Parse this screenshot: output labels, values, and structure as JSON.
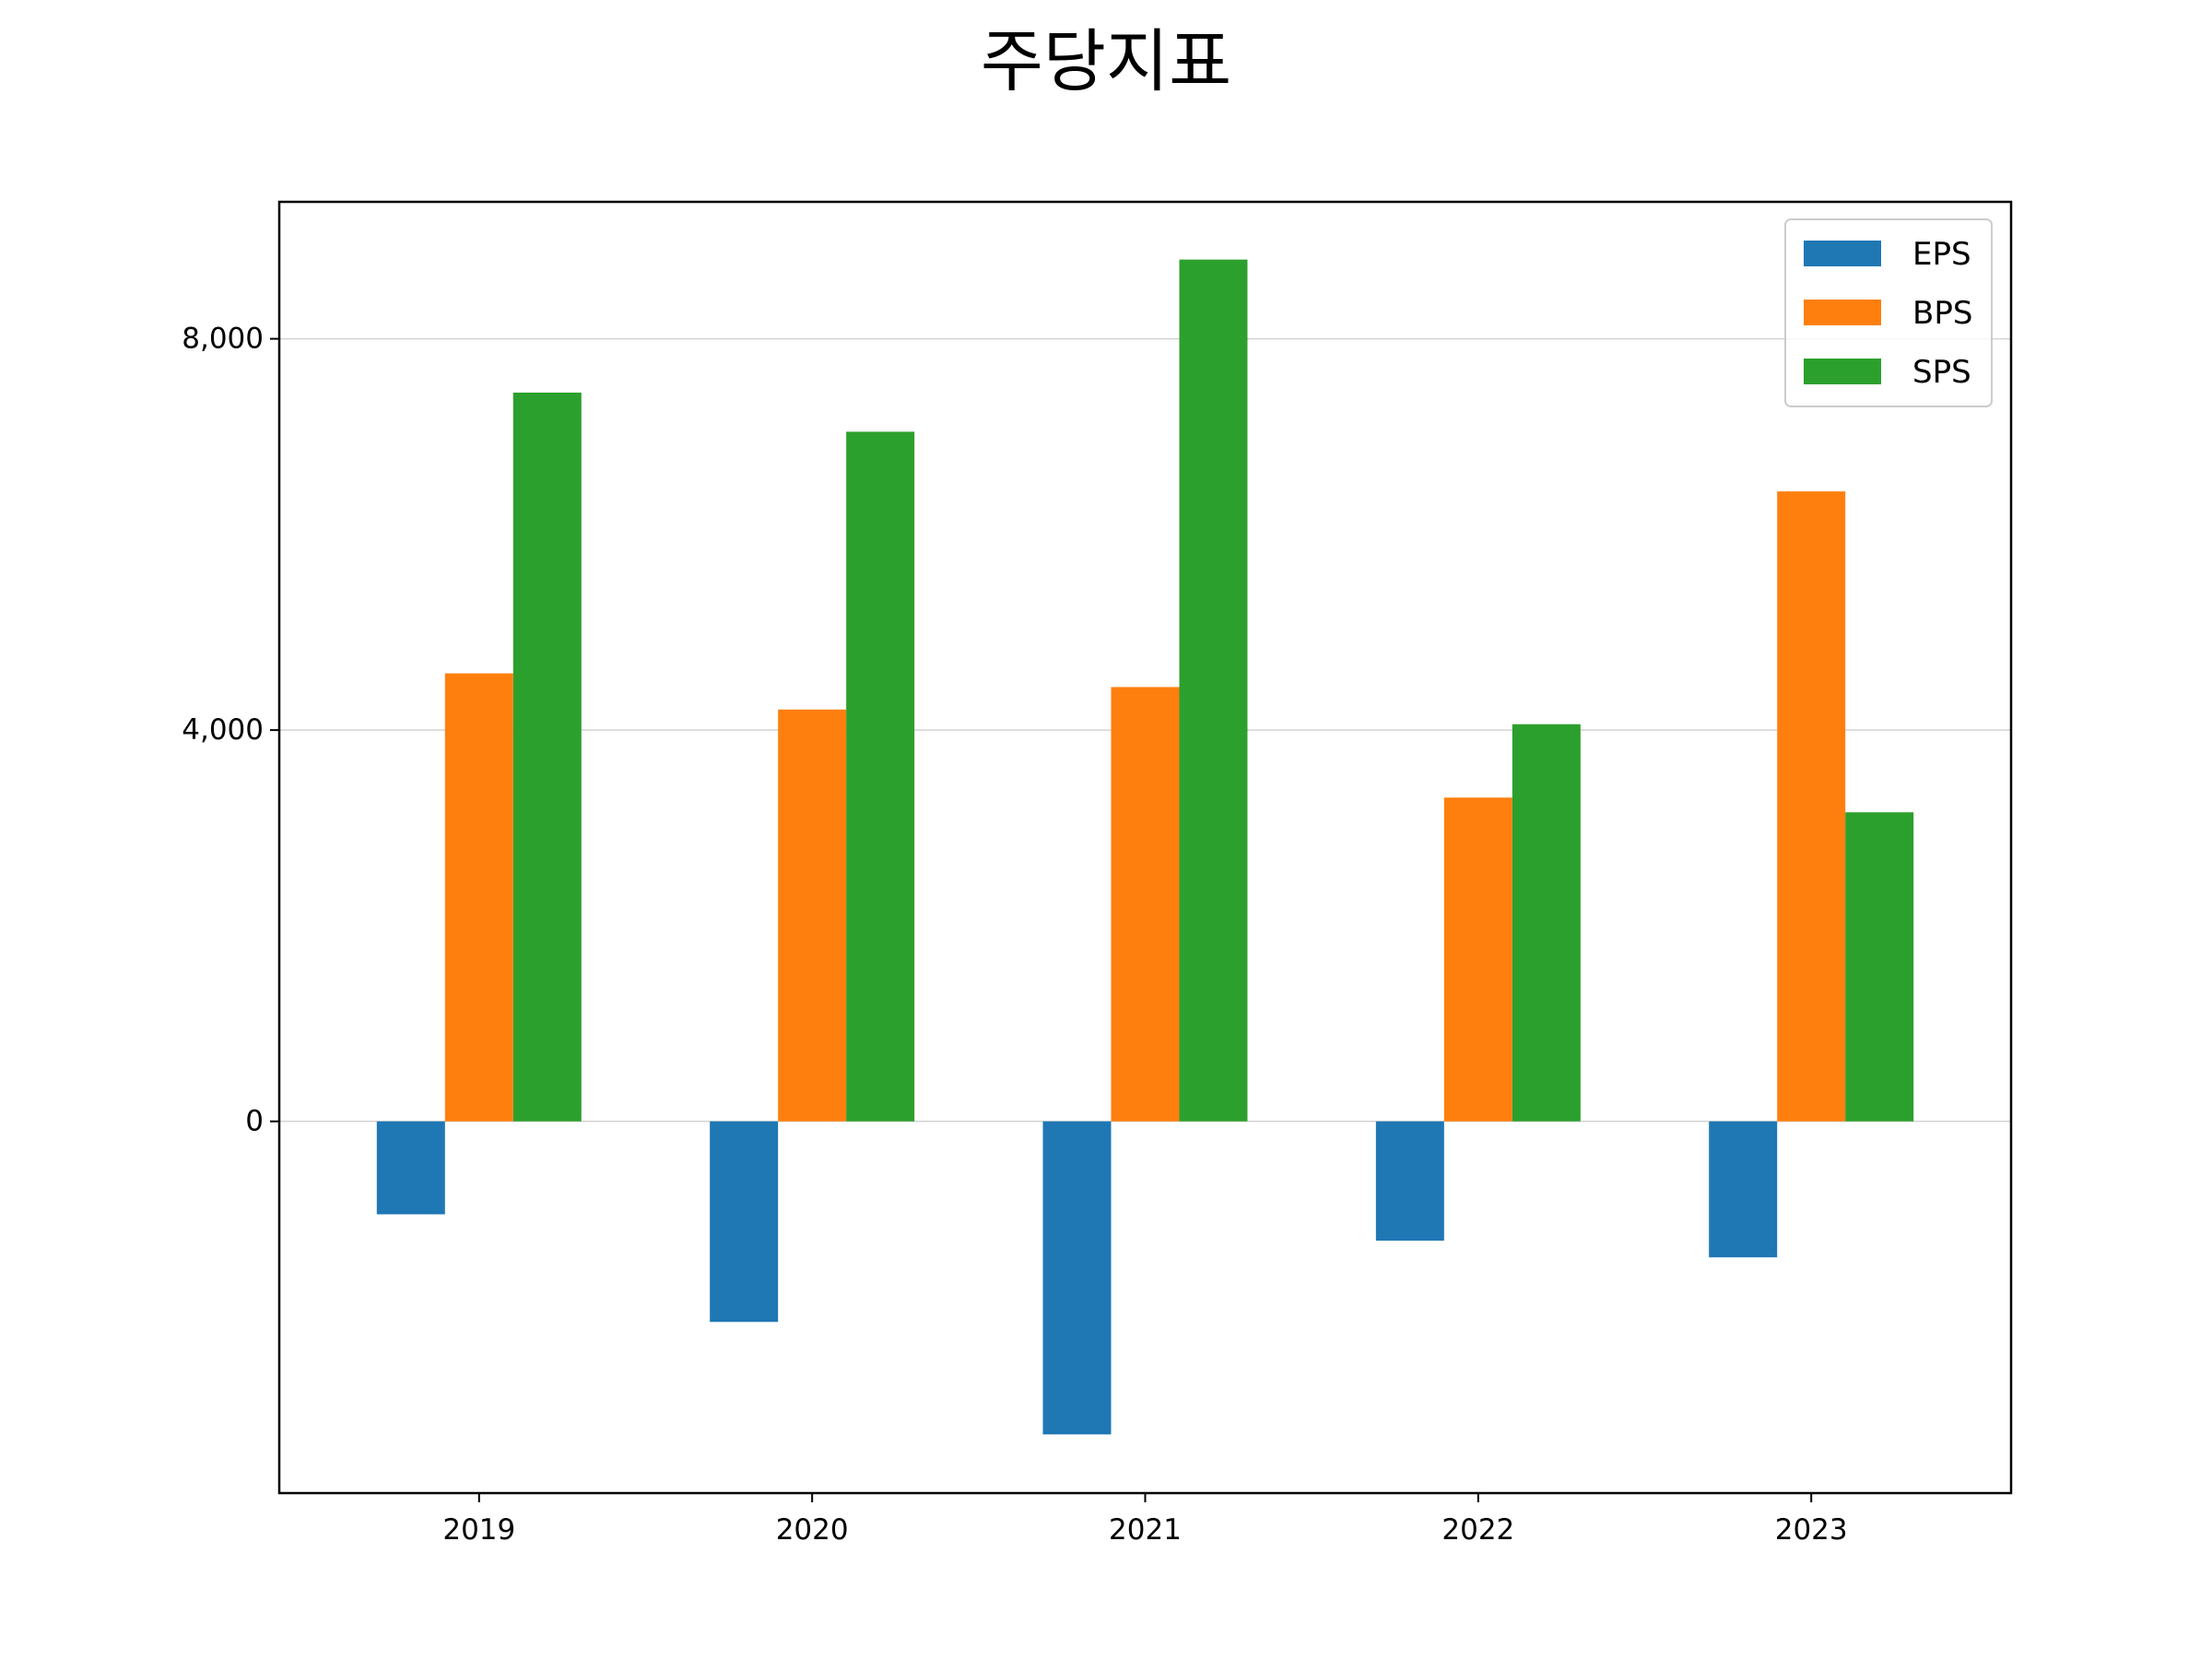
{
  "chart_data": {
    "type": "bar",
    "title": "주당지표",
    "categories": [
      "2019",
      "2020",
      "2021",
      "2022",
      "2023"
    ],
    "series": [
      {
        "name": "EPS",
        "color": "#1f77b4",
        "values": [
          -950,
          -2050,
          -3200,
          -1220,
          -1390
        ]
      },
      {
        "name": "BPS",
        "color": "#ff7f0e",
        "values": [
          4580,
          4210,
          4440,
          3310,
          6440
        ]
      },
      {
        "name": "SPS",
        "color": "#2ca02c",
        "values": [
          7450,
          7050,
          8810,
          4060,
          3160
        ]
      }
    ],
    "ylim": [
      -3800,
      9400
    ],
    "yticks": [
      0,
      4000,
      8000
    ],
    "ytick_labels": [
      "0",
      "4,000",
      "8,000"
    ],
    "xlabel": "",
    "ylabel": "",
    "grid": "y-axis horizontal lines",
    "legend_position": "top-right"
  }
}
